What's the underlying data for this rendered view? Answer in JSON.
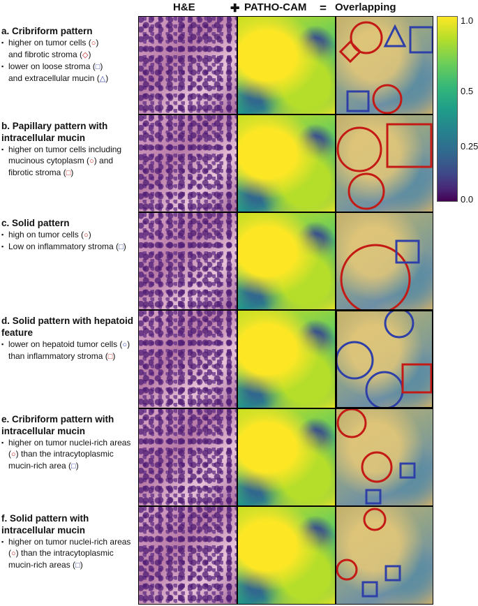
{
  "header": {
    "he": "H&E",
    "plus": "✚",
    "cam": "PATHO-CAM",
    "eq": "=",
    "overlap": "Overlapping"
  },
  "colorbar": {
    "ticks": [
      "1.0",
      "0.5",
      "0.25",
      "0.0"
    ]
  },
  "panels": [
    {
      "title": "a. Cribriform pattern",
      "b1": [
        "higher on tumor cells (",
        ")"
      ],
      "b1s": "○",
      "b1b": [
        "and fibrotic stroma (",
        ")"
      ],
      "b1bs": "◇",
      "b2": [
        "lower on loose stroma (",
        ")"
      ],
      "b2s": "□",
      "b2b": [
        "and extracellular mucin (",
        ")"
      ],
      "b2bs": "△"
    },
    {
      "title": "b. Papillary pattern with intracellular mucin",
      "b1": "higher on tumor cells including mucinous cytoplasm (",
      "b1s": "○",
      "b1m": ") and fibrotic stroma (",
      "b1s2": "□",
      "b1e": ")"
    },
    {
      "title": "c. Solid pattern",
      "b1": [
        "high on tumor cells (",
        ")"
      ],
      "b1s": "○",
      "b2": "Low on inflammatory stroma (",
      "b2s": "□",
      "b2e": ")"
    },
    {
      "title": "d. Solid pattern with hepatoid feature",
      "b1": "lower on hepatoid tumor cells (",
      "b1s": "○",
      "b1m": ") than inflammatory stroma (",
      "b1s2": "□",
      "b1e": ")"
    },
    {
      "title": "e. Cribriform pattern with intracellular mucin",
      "b1": "higher on tumor nuclei-rich areas (",
      "b1s": "○",
      "b1m": ") than the intracytoplasmic mucin-rich area (",
      "b1s2": "□",
      "b1e": ")"
    },
    {
      "title": "f. Solid pattern with intracellular mucin",
      "b1": "higher on tumor nuclei-rich areas (",
      "b1s": "○",
      "b1m": ") than the intracytoplasmic mucin-rich areas (",
      "b1s2": "□",
      "b1e": ")"
    }
  ],
  "colors": {
    "red": "#c41a15",
    "blue": "#2e3fa8"
  }
}
